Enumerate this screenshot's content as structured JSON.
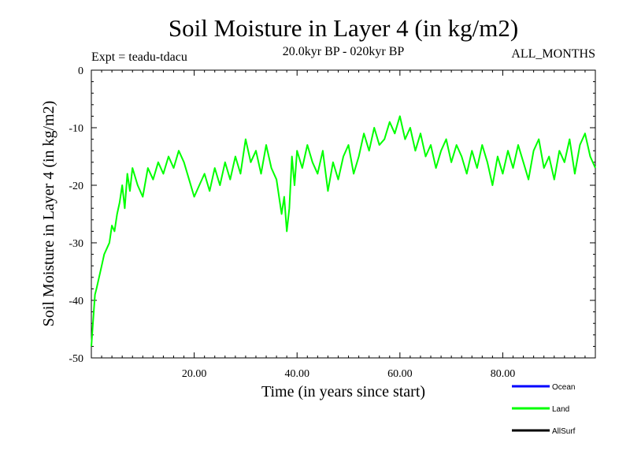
{
  "chart_data": {
    "type": "line",
    "title": "Soil Moisture in Layer 4 (in kg/m2)",
    "subtitle_left": "Expt = teadu-tdacu",
    "subtitle_center": "20.0kyr BP - 020kyr BP",
    "subtitle_right": "ALL_MONTHS",
    "xlabel": "Time (in years since start)",
    "ylabel": "Soil Moisture in Layer 4 (in kg/m2)",
    "xlim": [
      0,
      98
    ],
    "ylim": [
      -50,
      0
    ],
    "x_ticks": [
      20,
      40,
      60,
      80
    ],
    "x_tick_labels": [
      "20.00",
      "40.00",
      "60.00",
      "80.00"
    ],
    "y_ticks": [
      0,
      -10,
      -20,
      -30,
      -40,
      -50
    ],
    "y_tick_labels": [
      "0",
      "-10",
      "-20",
      "-30",
      "-40",
      "-50"
    ],
    "legend_position": "bottom-right",
    "series": [
      {
        "name": "Ocean",
        "color": "#0000ff",
        "x": [],
        "values": []
      },
      {
        "name": "Land",
        "color": "#00ff00",
        "x": [
          0,
          0.3,
          0.7,
          1,
          1.5,
          2,
          2.5,
          3,
          3.5,
          4,
          4.5,
          5,
          5.5,
          6,
          6.5,
          7,
          7.5,
          8,
          9,
          10,
          11,
          12,
          13,
          14,
          15,
          16,
          17,
          18,
          19,
          20,
          21,
          22,
          23,
          24,
          25,
          26,
          27,
          28,
          29,
          30,
          31,
          32,
          33,
          34,
          35,
          36,
          37,
          37.5,
          38,
          38.5,
          39,
          39.5,
          40,
          41,
          42,
          43,
          44,
          45,
          46,
          47,
          48,
          49,
          50,
          51,
          52,
          53,
          54,
          55,
          56,
          57,
          58,
          59,
          60,
          61,
          62,
          63,
          64,
          65,
          66,
          67,
          68,
          69,
          70,
          71,
          72,
          73,
          74,
          75,
          76,
          77,
          78,
          79,
          80,
          81,
          82,
          83,
          84,
          85,
          86,
          87,
          88,
          89,
          90,
          91,
          92,
          93,
          94,
          95,
          96,
          97,
          98
        ],
        "values": [
          -48,
          -44,
          -39,
          -38,
          -36,
          -34,
          -32,
          -31,
          -30,
          -27,
          -28,
          -25,
          -23,
          -20,
          -24,
          -18,
          -21,
          -17,
          -20,
          -22,
          -17,
          -19,
          -16,
          -18,
          -15,
          -17,
          -14,
          -16,
          -19,
          -22,
          -20,
          -18,
          -21,
          -17,
          -20,
          -16,
          -19,
          -15,
          -18,
          -12,
          -16,
          -14,
          -18,
          -13,
          -17,
          -19,
          -25,
          -22,
          -28,
          -24,
          -15,
          -20,
          -14,
          -17,
          -13,
          -16,
          -18,
          -14,
          -21,
          -16,
          -19,
          -15,
          -13,
          -18,
          -15,
          -11,
          -14,
          -10,
          -13,
          -12,
          -9,
          -11,
          -8,
          -12,
          -10,
          -14,
          -11,
          -15,
          -13,
          -17,
          -14,
          -12,
          -16,
          -13,
          -15,
          -18,
          -14,
          -17,
          -13,
          -16,
          -20,
          -15,
          -18,
          -14,
          -17,
          -13,
          -16,
          -19,
          -14,
          -12,
          -17,
          -15,
          -19,
          -14,
          -16,
          -12,
          -18,
          -13,
          -11,
          -15,
          -17
        ]
      },
      {
        "name": "AllSurf",
        "color": "#000000",
        "x": [],
        "values": []
      }
    ]
  }
}
